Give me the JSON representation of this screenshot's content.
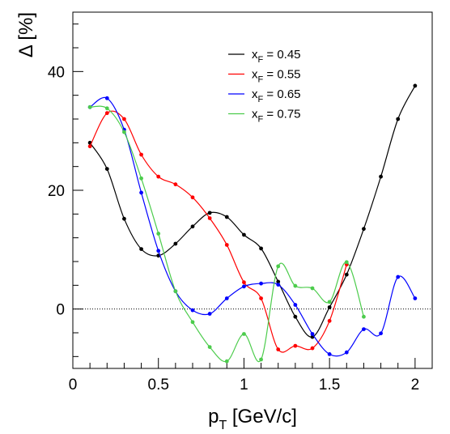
{
  "chart_data": {
    "type": "line",
    "title": "",
    "xlabel": {
      "base": "p",
      "sub": "T",
      "rest": " [GeV/c]"
    },
    "ylabel": "Δ [%]",
    "xlim": [
      0,
      2.1
    ],
    "ylim": [
      -10,
      50
    ],
    "xticks": [
      0,
      0.5,
      1,
      1.5,
      2
    ],
    "xtick_labels": [
      "0",
      "0.5",
      "1",
      "1.5",
      "2"
    ],
    "yticks": [
      0,
      20,
      40
    ],
    "ytick_labels": [
      "0",
      "20",
      "40"
    ],
    "reference_line": {
      "y": 0,
      "style": "dotted"
    },
    "grid": false,
    "legend": {
      "position": "top-right"
    },
    "series": [
      {
        "name": "x_F = 0.45",
        "name_parts": {
          "base": "x",
          "sub": "F",
          "rest": " = 0.45"
        },
        "color": "#000000",
        "x": [
          0.1,
          0.2,
          0.3,
          0.4,
          0.5,
          0.6,
          0.7,
          0.8,
          0.9,
          1.0,
          1.1,
          1.2,
          1.3,
          1.4,
          1.5,
          1.6,
          1.7,
          1.8,
          1.9,
          2.0
        ],
        "y": [
          28.0,
          23.6,
          15.2,
          10.1,
          9.0,
          11.0,
          13.9,
          16.2,
          15.5,
          12.5,
          10.2,
          4.6,
          -1.3,
          -4.7,
          0.3,
          5.8,
          13.5,
          22.3,
          32.0,
          37.6
        ]
      },
      {
        "name": "x_F = 0.55",
        "name_parts": {
          "base": "x",
          "sub": "F",
          "rest": " = 0.55"
        },
        "color": "#ff0000",
        "x": [
          0.1,
          0.2,
          0.3,
          0.4,
          0.5,
          0.6,
          0.7,
          0.8,
          0.9,
          1.0,
          1.1,
          1.2,
          1.3,
          1.4,
          1.5,
          1.6
        ],
        "y": [
          27.4,
          33.0,
          32.0,
          26.0,
          22.3,
          21.0,
          18.8,
          15.3,
          10.8,
          4.5,
          1.8,
          -6.8,
          -6.2,
          -6.6,
          -2.0,
          7.5
        ]
      },
      {
        "name": "x_F = 0.65",
        "name_parts": {
          "base": "x",
          "sub": "F",
          "rest": " = 0.65"
        },
        "color": "#0000ff",
        "x": [
          0.1,
          0.2,
          0.3,
          0.4,
          0.5,
          0.6,
          0.7,
          0.8,
          0.9,
          1.0,
          1.1,
          1.2,
          1.3,
          1.4,
          1.5,
          1.6,
          1.7,
          1.8,
          1.9,
          2.0
        ],
        "y": [
          34.0,
          35.5,
          30.2,
          19.6,
          9.8,
          3.0,
          -0.2,
          -0.8,
          1.8,
          3.8,
          4.3,
          4.1,
          0.7,
          -4.2,
          -7.6,
          -7.3,
          -3.4,
          -4.1,
          5.4,
          1.8
        ]
      },
      {
        "name": "x_F = 0.75",
        "name_parts": {
          "base": "x",
          "sub": "F",
          "rest": " = 0.75"
        },
        "color": "#4ccc4c",
        "x": [
          0.1,
          0.2,
          0.3,
          0.4,
          0.5,
          0.6,
          0.7,
          0.8,
          0.9,
          1.0,
          1.1,
          1.2,
          1.3,
          1.4,
          1.5,
          1.6,
          1.7
        ],
        "y": [
          34.0,
          33.8,
          29.8,
          22.0,
          12.7,
          3.0,
          -2.2,
          -6.4,
          -8.8,
          -4.2,
          -8.5,
          7.2,
          3.9,
          3.5,
          1.2,
          7.9,
          -1.3
        ]
      }
    ]
  }
}
